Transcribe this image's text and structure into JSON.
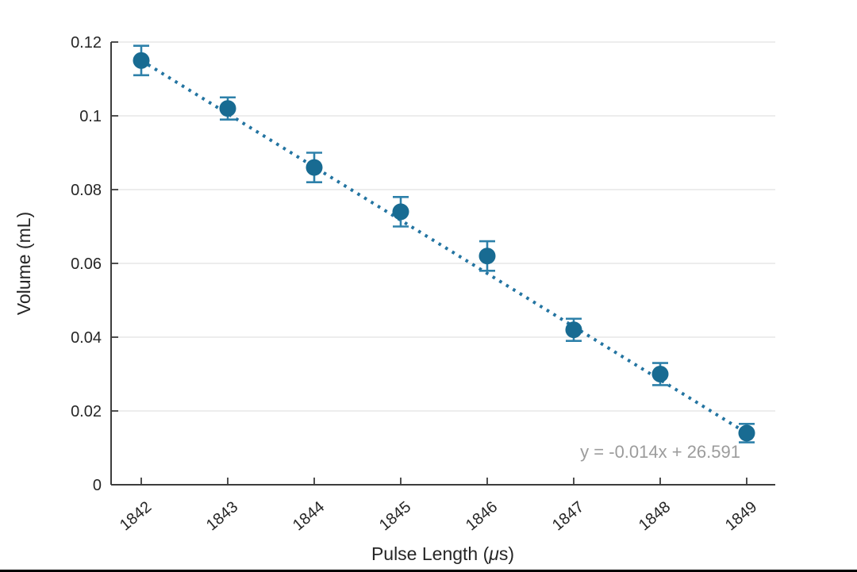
{
  "chart_data": {
    "type": "scatter",
    "title": "",
    "xlabel": "Pulse Length (μs)",
    "ylabel": "Volume (mL)",
    "x": [
      1842,
      1843,
      1844,
      1845,
      1846,
      1847,
      1848,
      1849
    ],
    "series": [
      {
        "name": "Volume",
        "values": [
          0.115,
          0.102,
          0.086,
          0.074,
          0.062,
          0.042,
          0.03,
          0.014
        ],
        "errors": [
          0.004,
          0.003,
          0.004,
          0.004,
          0.004,
          0.003,
          0.003,
          0.0025
        ]
      }
    ],
    "xlim": [
      1841.65,
      1849.3
    ],
    "ylim": [
      0,
      0.12
    ],
    "xtick_labels": [
      "1842",
      "1843",
      "1844",
      "1845",
      "1846",
      "1847",
      "1848",
      "1849"
    ],
    "ytick_labels": [
      "0",
      "0.02",
      "0.04",
      "0.06",
      "0.08",
      "0.1",
      "0.12"
    ],
    "ytick_values": [
      0,
      0.02,
      0.04,
      0.06,
      0.08,
      0.1,
      0.12
    ],
    "grid": "horizontal",
    "legend": "none",
    "marker": "filled-circle",
    "trend": {
      "label": "y = -0.014x + 26.591",
      "style": "dotted",
      "x1": 1842,
      "y1": 0.115,
      "x2": 1849,
      "y2": 0.014
    }
  },
  "colors": {
    "background": "#ffffff",
    "marker": "#186b92",
    "error_bar": "#2e81aa",
    "trend_line": "#2374a1",
    "axis": "#3d3d3d",
    "tick_label": "#262626",
    "grid": "#e2e2e2",
    "equation_text": "#9c9c9c",
    "bottom_bar": "#000000"
  }
}
